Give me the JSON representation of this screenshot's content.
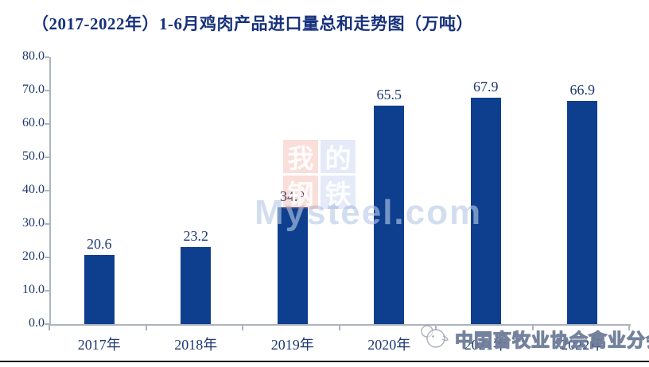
{
  "title": "（2017-2022年）1-6月鸡肉产品进口量总和走势图（万吨）",
  "colors": {
    "bar": "#0e3f8f",
    "title_text": "#16317d",
    "axis_text": "#1f3a6e",
    "axis_line": "#aeb4be",
    "bottom_rule": "#161616",
    "watermark_pink_tile": "rgba(226,104,84,0.22)",
    "watermark_blue_tile": "rgba(122,152,219,0.20)",
    "watermark_mysteel_text": "rgba(182,201,231,0.62)"
  },
  "chart_data": {
    "type": "bar",
    "title": "（2017-2022年）1-6月鸡肉产品进口量总和走势图（万吨）",
    "categories": [
      "2017年",
      "2018年",
      "2019年",
      "2020年",
      "2021年",
      "2022年"
    ],
    "values": [
      20.6,
      23.2,
      34.9,
      65.5,
      67.9,
      66.9
    ],
    "value_labels": [
      "20.6",
      "23.2",
      "34.9",
      "65.5",
      "67.9",
      "66.9"
    ],
    "xlabel": "",
    "ylabel": "",
    "ylim": [
      0,
      80
    ],
    "ytick_step": 10,
    "ytick_labels": [
      "0.0",
      "10.0",
      "20.0",
      "30.0",
      "40.0",
      "50.0",
      "60.0",
      "70.0",
      "80.0"
    ],
    "grid": false,
    "legend": false
  },
  "watermarks": {
    "mysteel": {
      "tiles": [
        {
          "char": "我",
          "bg": "pink"
        },
        {
          "char": "的",
          "bg": "blue"
        },
        {
          "char": "钢",
          "bg": "pink"
        },
        {
          "char": "铁",
          "bg": "blue"
        }
      ],
      "text": "Mysteel.com"
    },
    "association": {
      "logo": "poultry-association-logo",
      "text": "中国畜牧业协会禽业分会"
    }
  }
}
